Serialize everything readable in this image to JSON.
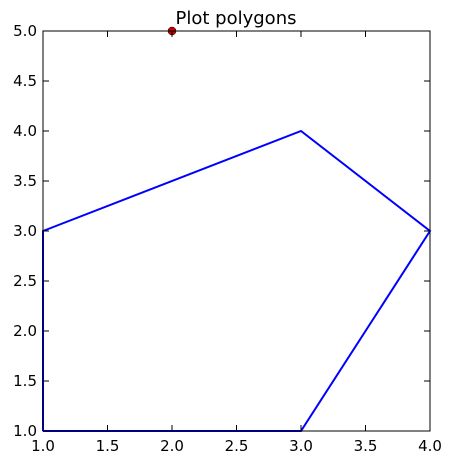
{
  "chart_data": {
    "type": "line",
    "title": "Plot polygons",
    "xlabel": "",
    "ylabel": "",
    "xlim": [
      1.0,
      4.0
    ],
    "ylim": [
      1.0,
      5.0
    ],
    "x_ticks": [
      "1.0",
      "1.5",
      "2.0",
      "2.5",
      "3.0",
      "3.5",
      "4.0"
    ],
    "y_ticks": [
      "1.0",
      "1.5",
      "2.0",
      "2.5",
      "3.0",
      "3.5",
      "4.0",
      "4.5",
      "5.0"
    ],
    "grid": false,
    "series": [
      {
        "type": "polygon",
        "color": "#0000ff",
        "points": [
          [
            1,
            1
          ],
          [
            3,
            1
          ],
          [
            4,
            3
          ],
          [
            3,
            4
          ],
          [
            1,
            3
          ],
          [
            1,
            1
          ]
        ]
      },
      {
        "type": "scatter",
        "color": "#cc0000",
        "points": [
          [
            2,
            5
          ]
        ]
      }
    ]
  }
}
